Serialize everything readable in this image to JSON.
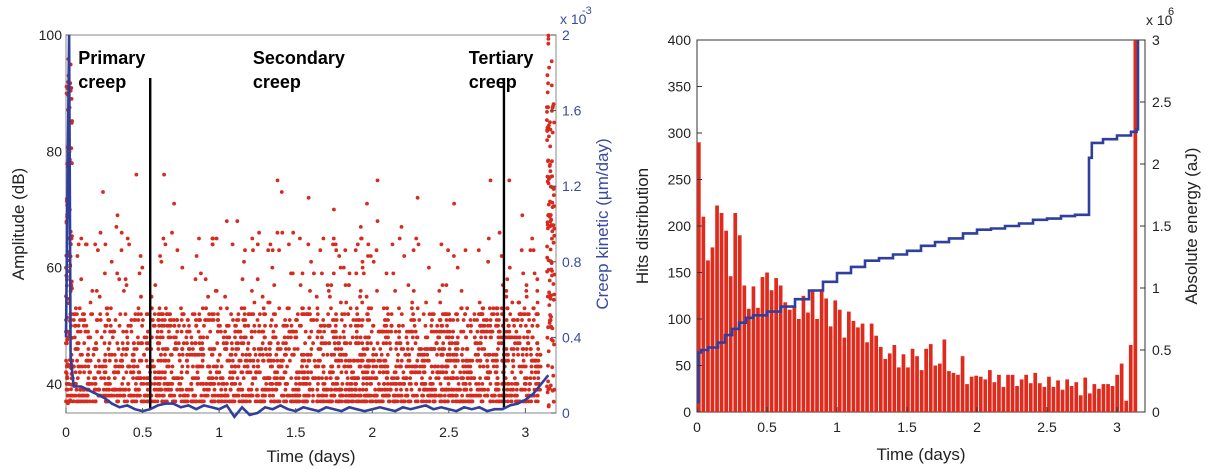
{
  "chart_data": [
    {
      "type": "scatter",
      "xlabel": "Time (days)",
      "ylabel": "Amplitude (dB)",
      "y2label": "Creep kinetic (µm/day)",
      "y2_exponent": "x 10",
      "y2_exponent_power": "-3",
      "xlim": [
        0,
        3.2
      ],
      "ylim": [
        35,
        100
      ],
      "y2lim": [
        0,
        2
      ],
      "xticks": [
        "0",
        "0.5",
        "1",
        "1.5",
        "2",
        "2.5",
        "3"
      ],
      "yticks": [
        "40",
        "60",
        "80",
        "100"
      ],
      "y2ticks": [
        "0",
        "0.4",
        "0.8",
        "1.2",
        "1.6",
        "2"
      ],
      "annotations": [
        {
          "text": "Primary",
          "line2": "creep",
          "x": 0.08,
          "y": 96
        },
        {
          "text": "Secondary",
          "line2": "creep",
          "x": 1.22,
          "y": 96
        },
        {
          "text": "Tertiary",
          "line2": "creep",
          "x": 2.63,
          "y": 96
        }
      ],
      "phase_boundaries": [
        0.55,
        2.86
      ],
      "scatter_color": "#d62b1e",
      "line_color": "#2f3f9e",
      "creep_kinetic": {
        "x": [
          0.0,
          0.02,
          0.03,
          0.05,
          0.1,
          0.15,
          0.2,
          0.25,
          0.3,
          0.35,
          0.4,
          0.45,
          0.5,
          0.55,
          0.6,
          0.65,
          0.7,
          0.75,
          0.8,
          0.85,
          0.9,
          0.95,
          1.0,
          1.05,
          1.1,
          1.15,
          1.2,
          1.25,
          1.3,
          1.35,
          1.4,
          1.45,
          1.5,
          1.55,
          1.6,
          1.65,
          1.7,
          1.75,
          1.8,
          1.85,
          1.9,
          1.95,
          2.0,
          2.05,
          2.1,
          2.15,
          2.2,
          2.25,
          2.3,
          2.35,
          2.4,
          2.45,
          2.5,
          2.55,
          2.6,
          2.65,
          2.7,
          2.75,
          2.8,
          2.85,
          2.9,
          2.95,
          3.0,
          3.05,
          3.1,
          3.15
        ],
        "y": [
          0.4,
          2.0,
          0.3,
          0.14,
          0.14,
          0.12,
          0.1,
          0.08,
          0.05,
          0.03,
          0.04,
          0.02,
          0.01,
          0.02,
          0.04,
          0.05,
          0.05,
          0.03,
          0.04,
          0.02,
          0.04,
          0.03,
          0.02,
          0.04,
          -0.02,
          0.03,
          -0.01,
          0.0,
          0.03,
          0.02,
          0.04,
          0.02,
          0.01,
          0.03,
          0.02,
          0.01,
          0.03,
          0.02,
          0.01,
          0.03,
          0.02,
          0.01,
          0.02,
          0.03,
          0.02,
          0.01,
          0.03,
          0.02,
          0.03,
          0.04,
          0.02,
          0.03,
          0.02,
          0.01,
          0.03,
          0.02,
          0.03,
          0.01,
          0.02,
          0.02,
          0.04,
          0.05,
          0.07,
          0.1,
          0.15,
          0.2
        ]
      }
    },
    {
      "type": "bar",
      "xlabel": "Time (days)",
      "ylabel": "Hits distribution",
      "y2label": "Absolute energy (aJ)",
      "y2_exponent": "x 10",
      "y2_exponent_power": "6",
      "xlim": [
        0,
        3.2
      ],
      "ylim": [
        0,
        400
      ],
      "y2lim": [
        0,
        3000000
      ],
      "xticks": [
        "0",
        "0.5",
        "1",
        "1.5",
        "2",
        "2.5",
        "3"
      ],
      "yticks": [
        "0",
        "50",
        "100",
        "150",
        "200",
        "250",
        "300",
        "350",
        "400"
      ],
      "y2ticks": [
        "0",
        "0.5",
        "1",
        "1.5",
        "2",
        "2.5",
        "3"
      ],
      "bar_color": "#e02a1c",
      "line_color": "#2f3f9e",
      "bins": {
        "bin_width": 0.04,
        "values": [
          290,
          210,
          163,
          177,
          222,
          214,
          195,
          146,
          214,
          190,
          136,
          111,
          135,
          112,
          145,
          150,
          131,
          144,
          136,
          118,
          110,
          114,
          100,
          125,
          107,
          131,
          100,
          132,
          122,
          92,
          120,
          110,
          80,
          108,
          98,
          91,
          95,
          75,
          95,
          82,
          70,
          57,
          63,
          72,
          48,
          62,
          48,
          68,
          60,
          45,
          68,
          73,
          50,
          52,
          78,
          44,
          42,
          40,
          60,
          30,
          38,
          39,
          38,
          35,
          45,
          32,
          40,
          27,
          40,
          40,
          28,
          35,
          40,
          31,
          42,
          31,
          27,
          38,
          27,
          34,
          24,
          35,
          28,
          32,
          18,
          37,
          20,
          30,
          25,
          30,
          30,
          28,
          40,
          52,
          12,
          72,
          400
        ]
      },
      "absolute_energy": {
        "x": [
          0.0,
          0.01,
          0.03,
          0.08,
          0.15,
          0.2,
          0.25,
          0.3,
          0.35,
          0.4,
          0.5,
          0.6,
          0.7,
          0.8,
          0.9,
          1.0,
          1.1,
          1.2,
          1.3,
          1.4,
          1.5,
          1.6,
          1.7,
          1.8,
          1.9,
          2.0,
          2.1,
          2.2,
          2.3,
          2.4,
          2.5,
          2.6,
          2.7,
          2.79,
          2.8,
          2.82,
          2.9,
          3.0,
          3.1,
          3.14,
          3.15
        ],
        "y": [
          0.08,
          0.48,
          0.5,
          0.52,
          0.56,
          0.62,
          0.67,
          0.72,
          0.76,
          0.78,
          0.81,
          0.85,
          0.91,
          0.98,
          1.05,
          1.12,
          1.17,
          1.22,
          1.24,
          1.27,
          1.3,
          1.34,
          1.37,
          1.4,
          1.44,
          1.47,
          1.48,
          1.5,
          1.52,
          1.55,
          1.56,
          1.58,
          1.59,
          1.59,
          2.05,
          2.17,
          2.2,
          2.23,
          2.26,
          2.28,
          3.0
        ]
      }
    }
  ]
}
